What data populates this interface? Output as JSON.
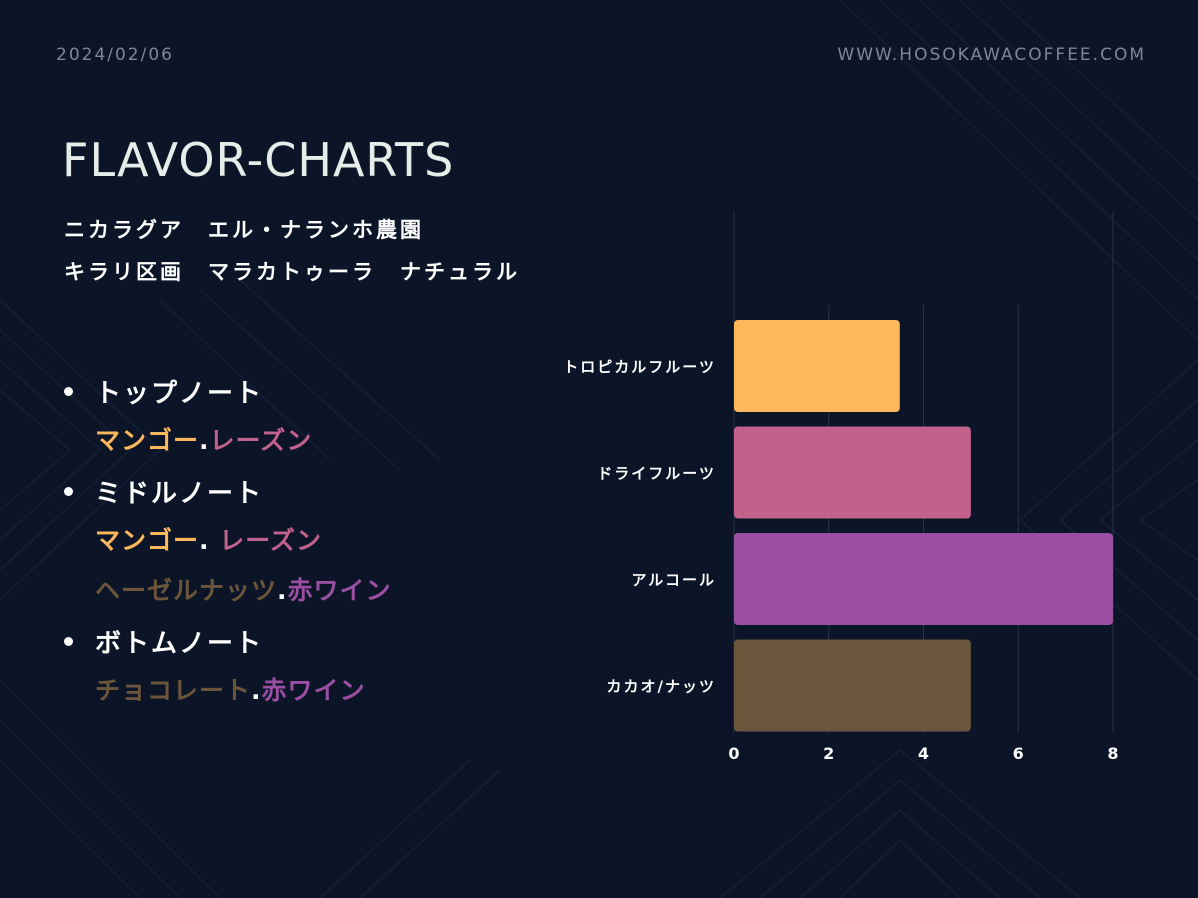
{
  "header": {
    "date": "2024/02/06",
    "website": "WWW.HOSOKAWACOFFEE.COM"
  },
  "title": "FLAVOR-CHARTS",
  "subtitle_line1": "ニカラグア　エル・ナランホ農園",
  "subtitle_line2": "キラリ区画　マラカトゥーラ　ナチュラル",
  "colors": {
    "background": "#0b1527",
    "orange": "#fdb85b",
    "pink": "#c2628c",
    "purple": "#9a4fa2",
    "brown": "#6b563b"
  },
  "notes": {
    "top_label": "トップノート",
    "top_item1": "マンゴー",
    "top_sep1": ".",
    "top_item2": "レーズン",
    "middle_label": "ミドルノート",
    "middle_item1": "マンゴー",
    "middle_sep1": ". ",
    "middle_item2": "レーズン",
    "middle_item3": "ヘーゼルナッツ",
    "middle_sep2": ".",
    "middle_item4": "赤ワイン",
    "bottom_label": "ボトムノート",
    "bottom_item1": "チョコレート",
    "bottom_sep1": ".",
    "bottom_item2": "赤ワイン"
  },
  "chart_data": {
    "type": "bar",
    "orientation": "horizontal",
    "categories": [
      "トロピカルフルーツ",
      "ドライフルーツ",
      "アルコール",
      "カカオ/ナッツ"
    ],
    "values": [
      3.5,
      5,
      8,
      5
    ],
    "bar_colors": [
      "#fdb85b",
      "#c2628c",
      "#9a4fa2",
      "#6b563b"
    ],
    "xlim": [
      0,
      8
    ],
    "xticks": [
      "0",
      "2",
      "4",
      "6",
      "8"
    ],
    "grid": "vertical",
    "legend": "none"
  }
}
